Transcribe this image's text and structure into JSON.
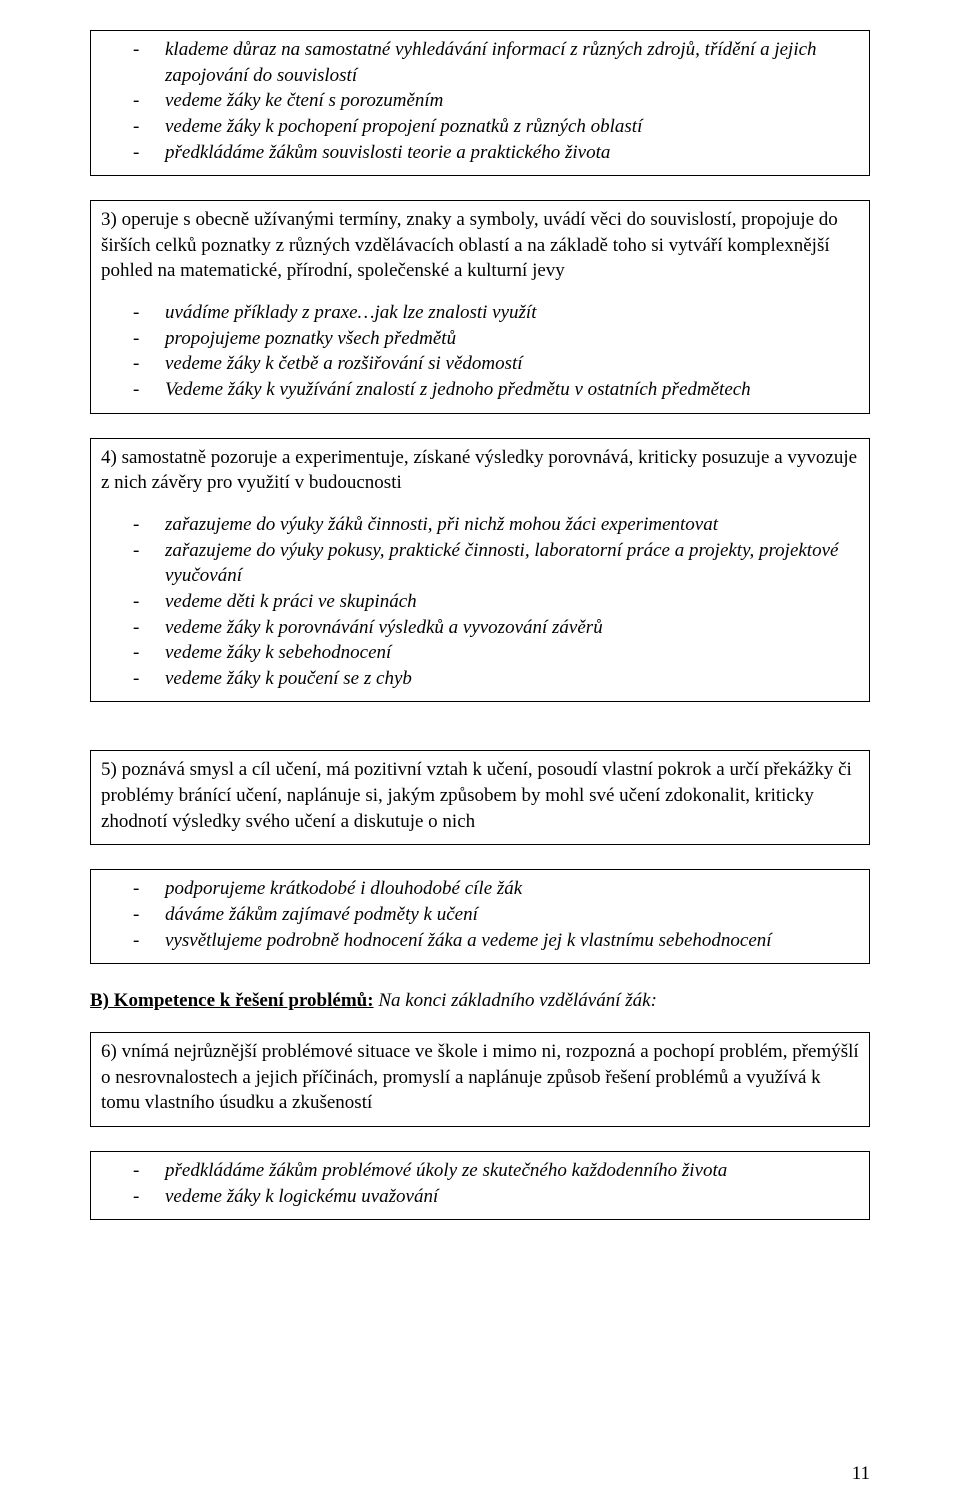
{
  "box1_items": [
    "klademe důraz na samostatné vyhledávání informací z různých zdrojů, třídění a jejich zapojování do souvislostí",
    "vedeme žáky ke čtení s porozuměním",
    "vedeme žáky k pochopení propojení poznatků z různých oblastí",
    "předkládáme žákům souvislosti teorie a praktického života"
  ],
  "section3_text": "3) operuje s obecně užívanými termíny, znaky a symboly, uvádí věci do souvislostí, propojuje do širších celků poznatky z různých vzdělávacích oblastí a na základě toho si vytváří komplexnější pohled na matematické, přírodní, společenské a kulturní jevy",
  "box3_items": [
    "uvádíme příklady z praxe…jak lze znalosti využít",
    "propojujeme poznatky všech předmětů",
    "vedeme žáky k četbě a rozšiřování si vědomostí",
    "Vedeme žáky k využívání znalostí z jednoho předmětu v ostatních předmětech"
  ],
  "section4_text": "4) samostatně pozoruje a experimentuje, získané výsledky porovnává, kriticky posuzuje a vyvozuje z nich závěry pro využití v budoucnosti",
  "box4_items": [
    "zařazujeme do výuky žáků činnosti, při nichž mohou žáci experimentovat",
    "zařazujeme do výuky  pokusy, praktické činnosti, laboratorní práce a projekty, projektové vyučování",
    "vedeme děti k práci ve skupinách",
    "vedeme žáky k porovnávání výsledků a vyvozování závěrů",
    "vedeme žáky k sebehodnocení",
    "vedeme žáky k poučení se z chyb"
  ],
  "section5_text": "5) poznává smysl a cíl učení, má pozitivní vztah k učení, posoudí vlastní pokrok a určí překážky či problémy bránící učení, naplánuje si, jakým způsobem by mohl své učení zdokonalit, kriticky zhodnotí výsledky svého učení a diskutuje o nich",
  "box5_items": [
    "podporujeme krátkodobé i dlouhodobé cíle žák",
    "dáváme žákům zajímavé podměty k učení",
    "vysvětlujeme podrobně hodnocení žáka a vedeme jej k vlastnímu sebehodnocení"
  ],
  "heading_B_label": "B) Kompetence k řešení problémů:",
  "heading_B_sub": " Na konci základního vzdělávání žák:",
  "section6_text": "6) vnímá nejrůznější problémové situace ve škole i mimo ni, rozpozná a pochopí problém, přemýšlí o nesrovnalostech a jejich příčinách, promyslí a naplánuje způsob řešení problémů a využívá k tomu vlastního úsudku a zkušeností",
  "box6_items": [
    "předkládáme žákům problémové úkoly ze skutečného každodenního života",
    "vedeme žáky k logickému uvažování"
  ],
  "page_number": "11"
}
